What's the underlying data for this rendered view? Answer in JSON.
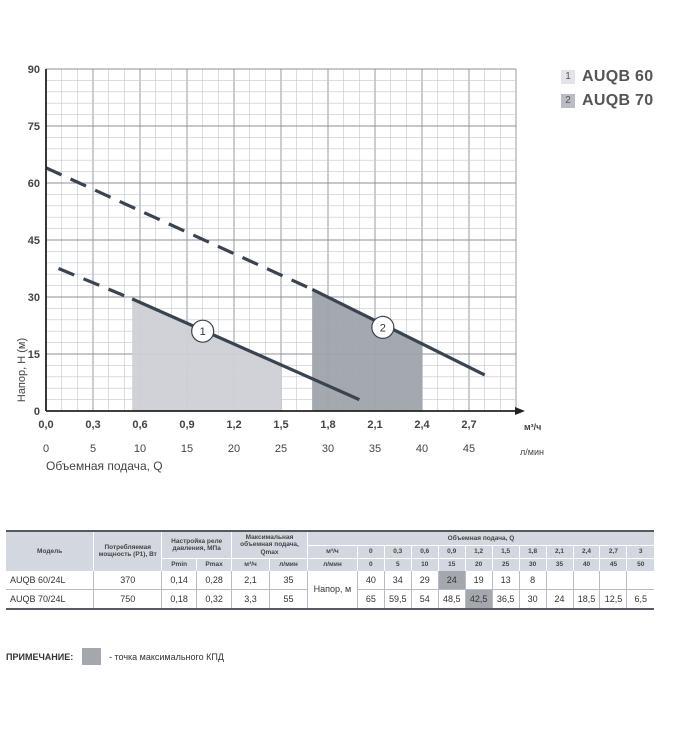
{
  "chart_data": {
    "type": "line",
    "ylabel": "Напор, Н (м)",
    "xlabel": "Объемная подача, Q",
    "x_unit": "м³/ч",
    "x2_unit": "л/мин",
    "xlim": [
      0,
      3.0
    ],
    "ylim": [
      0,
      90
    ],
    "x_ticks": [
      "0,0",
      "0,3",
      "0,6",
      "0,9",
      "1,2",
      "1,5",
      "1,8",
      "2,1",
      "2,4",
      "2,7"
    ],
    "x2_ticks": [
      "0",
      "5",
      "10",
      "15",
      "20",
      "25",
      "30",
      "35",
      "40",
      "45"
    ],
    "y_ticks": [
      "0",
      "15",
      "30",
      "45",
      "60",
      "75",
      "90"
    ],
    "grid": true,
    "legend_position": "top-right",
    "series": [
      {
        "name": "AUQB 60",
        "label": "1",
        "dashed": [
          [
            0.08,
            37.5
          ],
          [
            0.55,
            29.5
          ]
        ],
        "solid": [
          [
            0.55,
            29.5
          ],
          [
            2.0,
            3
          ]
        ],
        "efficiency_zone": {
          "x": [
            0.55,
            1.5
          ],
          "y_top_left": 29.5,
          "y_top_right": 12
        },
        "marker_at": [
          1.0,
          21
        ],
        "color": "#3a4450",
        "zone_color": "#cdd0d6"
      },
      {
        "name": "AUQB 70",
        "label": "2",
        "dashed": [
          [
            0.0,
            64
          ],
          [
            1.7,
            32
          ]
        ],
        "solid": [
          [
            1.7,
            32
          ],
          [
            2.8,
            9.5
          ]
        ],
        "efficiency_zone": {
          "x": [
            1.7,
            2.4
          ],
          "y_top_left": 32,
          "y_top_right": 18
        },
        "marker_at": [
          2.15,
          22
        ],
        "color": "#3a4450",
        "zone_color": "#9fa3ab"
      }
    ]
  },
  "legend": [
    {
      "num": "1",
      "name": "AUQB 60"
    },
    {
      "num": "2",
      "name": "AUQB 70"
    }
  ],
  "table": {
    "h_model": "Модель",
    "h_power": "Потребляемая мощность (P1), Вт",
    "h_relay": "Настройка реле давления, МПа",
    "h_qmax": "Максимальная объемная подача, Qmax",
    "h_flow": "Объемная подача, Q",
    "h_pmin": "Pmin",
    "h_pmax": "Pmax",
    "h_m3h": "м³/ч",
    "h_lmin": "л/мин",
    "flow_m3h": [
      "0",
      "0,3",
      "0,6",
      "0,9",
      "1,2",
      "1,5",
      "1,8",
      "2,1",
      "2,4",
      "2,7",
      "3"
    ],
    "flow_lmin": [
      "0",
      "5",
      "10",
      "15",
      "20",
      "25",
      "30",
      "35",
      "40",
      "45",
      "50"
    ],
    "head_label": "Напор, м",
    "rows": [
      {
        "model": "AUQB 60/24L",
        "power": "370",
        "pmin": "0,14",
        "pmax": "0,28",
        "qmax_m3h": "2,1",
        "qmax_lmin": "35",
        "head": [
          "40",
          "34",
          "29",
          "24",
          "19",
          "13",
          "8",
          "",
          "",
          "",
          ""
        ],
        "hl": [
          3
        ]
      },
      {
        "model": "AUQB 70/24L",
        "power": "750",
        "pmin": "0,18",
        "pmax": "0,32",
        "qmax_m3h": "3,3",
        "qmax_lmin": "55",
        "head": [
          "65",
          "59,5",
          "54",
          "48,5",
          "42,5",
          "36,5",
          "30",
          "24",
          "18,5",
          "12,5",
          "6,5"
        ],
        "hl": [
          4
        ]
      }
    ]
  },
  "note": {
    "label": "ПРИМЕЧАНИЕ:",
    "text": "- точка максимального КПД"
  },
  "colors": {
    "legend_box_1": "#e2e4e8",
    "legend_box_2": "#b9bcc2"
  }
}
